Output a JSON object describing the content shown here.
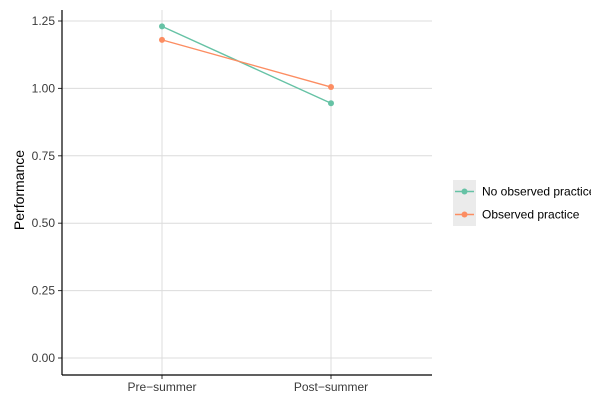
{
  "chart_data": {
    "type": "line",
    "title": "",
    "xlabel": "",
    "ylabel": "Performance",
    "categories": [
      "Pre−summer",
      "Post−summer"
    ],
    "ylim": [
      0.0,
      1.25
    ],
    "yticks": [
      0.0,
      0.25,
      0.5,
      0.75,
      1.0,
      1.25
    ],
    "ytick_labels": [
      "0.00",
      "0.25",
      "0.50",
      "0.75",
      "1.00",
      "1.25"
    ],
    "grid": true,
    "legend_position": "right",
    "series": [
      {
        "name": "No observed practice",
        "values": [
          1.23,
          0.945
        ],
        "color": "#66c2a5"
      },
      {
        "name": "Observed practice",
        "values": [
          1.18,
          1.005
        ],
        "color": "#fc8d62"
      }
    ]
  }
}
